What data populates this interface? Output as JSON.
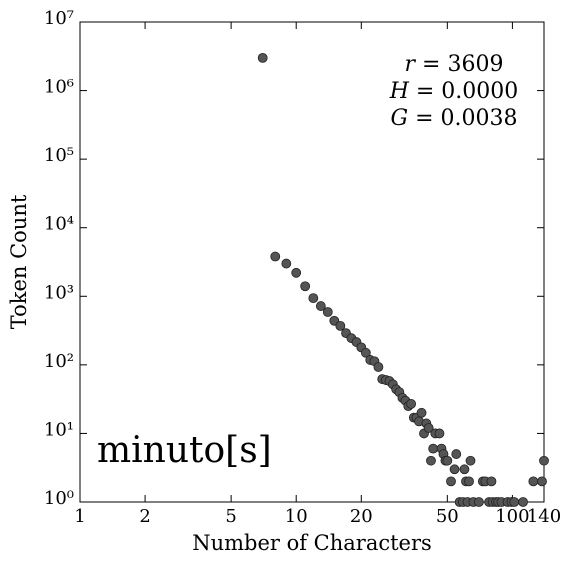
{
  "chart_data": {
    "type": "scatter",
    "x_label": "Number of Characters",
    "y_label": "Token Count",
    "log_x": true,
    "log_y": true,
    "color": "#555555",
    "edge_color": "#222222",
    "xlim": [
      1,
      140
    ],
    "ylim": [
      1,
      10000000
    ],
    "xticks": [
      1,
      2,
      5,
      10,
      20,
      50,
      100,
      140
    ],
    "yticks": [
      {
        "value": 1,
        "label": "10⁰"
      },
      {
        "value": 10,
        "label": "10¹"
      },
      {
        "value": 100,
        "label": "10²"
      },
      {
        "value": 1000,
        "label": "10³"
      },
      {
        "value": 10000,
        "label": "10⁴"
      },
      {
        "value": 100000,
        "label": "10⁵"
      },
      {
        "value": 1000000,
        "label": "10⁶"
      },
      {
        "value": 10000000,
        "label": "10⁷"
      }
    ],
    "stats": [
      {
        "symbol": "r",
        "text": " = 3609"
      },
      {
        "symbol": "H",
        "text": " = 0.0000"
      },
      {
        "symbol": "G",
        "text": " = 0.0038"
      }
    ],
    "word": "minuto[s]",
    "x": [
      7,
      8,
      9,
      10,
      11,
      12,
      13,
      14,
      15,
      16,
      17,
      18,
      19,
      20,
      21,
      22,
      23,
      24,
      25,
      26,
      27,
      28,
      29,
      30,
      31,
      32,
      33,
      34,
      35,
      36,
      37,
      38,
      39,
      40,
      41,
      42,
      43,
      44,
      46,
      47,
      48,
      49,
      50,
      52,
      54,
      55,
      57,
      59,
      60,
      61,
      62,
      63,
      64,
      66,
      70,
      73,
      75,
      78,
      80,
      81,
      84,
      86,
      89,
      95,
      99,
      102,
      112,
      125,
      137,
      140
    ],
    "values": [
      3000000,
      3800,
      3000,
      2200,
      1400,
      940,
      720,
      590,
      440,
      370,
      290,
      245,
      215,
      180,
      150,
      118,
      113,
      93,
      62,
      60,
      58,
      52,
      44,
      40,
      33,
      30,
      25,
      27,
      17,
      17,
      15,
      20,
      10,
      14,
      12,
      4,
      6,
      10,
      10,
      6,
      5,
      4,
      4,
      2,
      3,
      5,
      1,
      1,
      3,
      2,
      1,
      2,
      4,
      1,
      1,
      2,
      2,
      1,
      2,
      1,
      1,
      1,
      1,
      1,
      1,
      1,
      1,
      2,
      2,
      4
    ]
  }
}
